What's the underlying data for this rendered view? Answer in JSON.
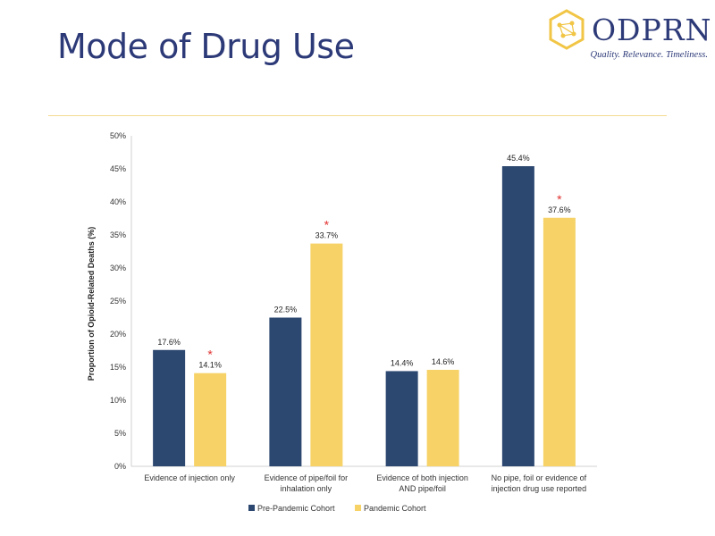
{
  "slide": {
    "title": "Mode of Drug Use"
  },
  "logo": {
    "name": "ODPRN",
    "tagline": "Quality. Relevance. Timeliness."
  },
  "colors": {
    "title": "#2d3a78",
    "rule": "#f3d98e",
    "pre_pandemic": "#2c4770",
    "pandemic": "#f6d267",
    "significance_star": "#e0312f"
  },
  "chart_data": {
    "type": "bar",
    "ylabel": "Proportion of Opioid-Related Deaths (%)",
    "ylim": [
      0,
      50
    ],
    "ytick_step": 5,
    "ytick_suffix": "%",
    "grid": false,
    "legend_position": "bottom",
    "categories": [
      [
        "Evidence of injection only"
      ],
      [
        "Evidence of pipe/foil for",
        "inhalation only"
      ],
      [
        "Evidence of both injection",
        "AND pipe/foil"
      ],
      [
        "No pipe, foil or evidence of",
        "injection drug use reported"
      ]
    ],
    "series": [
      {
        "name": "Pre-Pandemic Cohort",
        "values": [
          17.6,
          22.5,
          14.4,
          45.4
        ],
        "labels": [
          "17.6%",
          "22.5%",
          "14.4%",
          "45.4%"
        ]
      },
      {
        "name": "Pandemic Cohort",
        "values": [
          14.1,
          33.7,
          14.6,
          37.6
        ],
        "labels": [
          "14.1%",
          "33.7%",
          "14.6%",
          "37.6%"
        ]
      }
    ],
    "significance_marker": "*",
    "significant": [
      [
        false,
        false,
        false,
        false
      ],
      [
        true,
        true,
        false,
        true
      ]
    ]
  }
}
